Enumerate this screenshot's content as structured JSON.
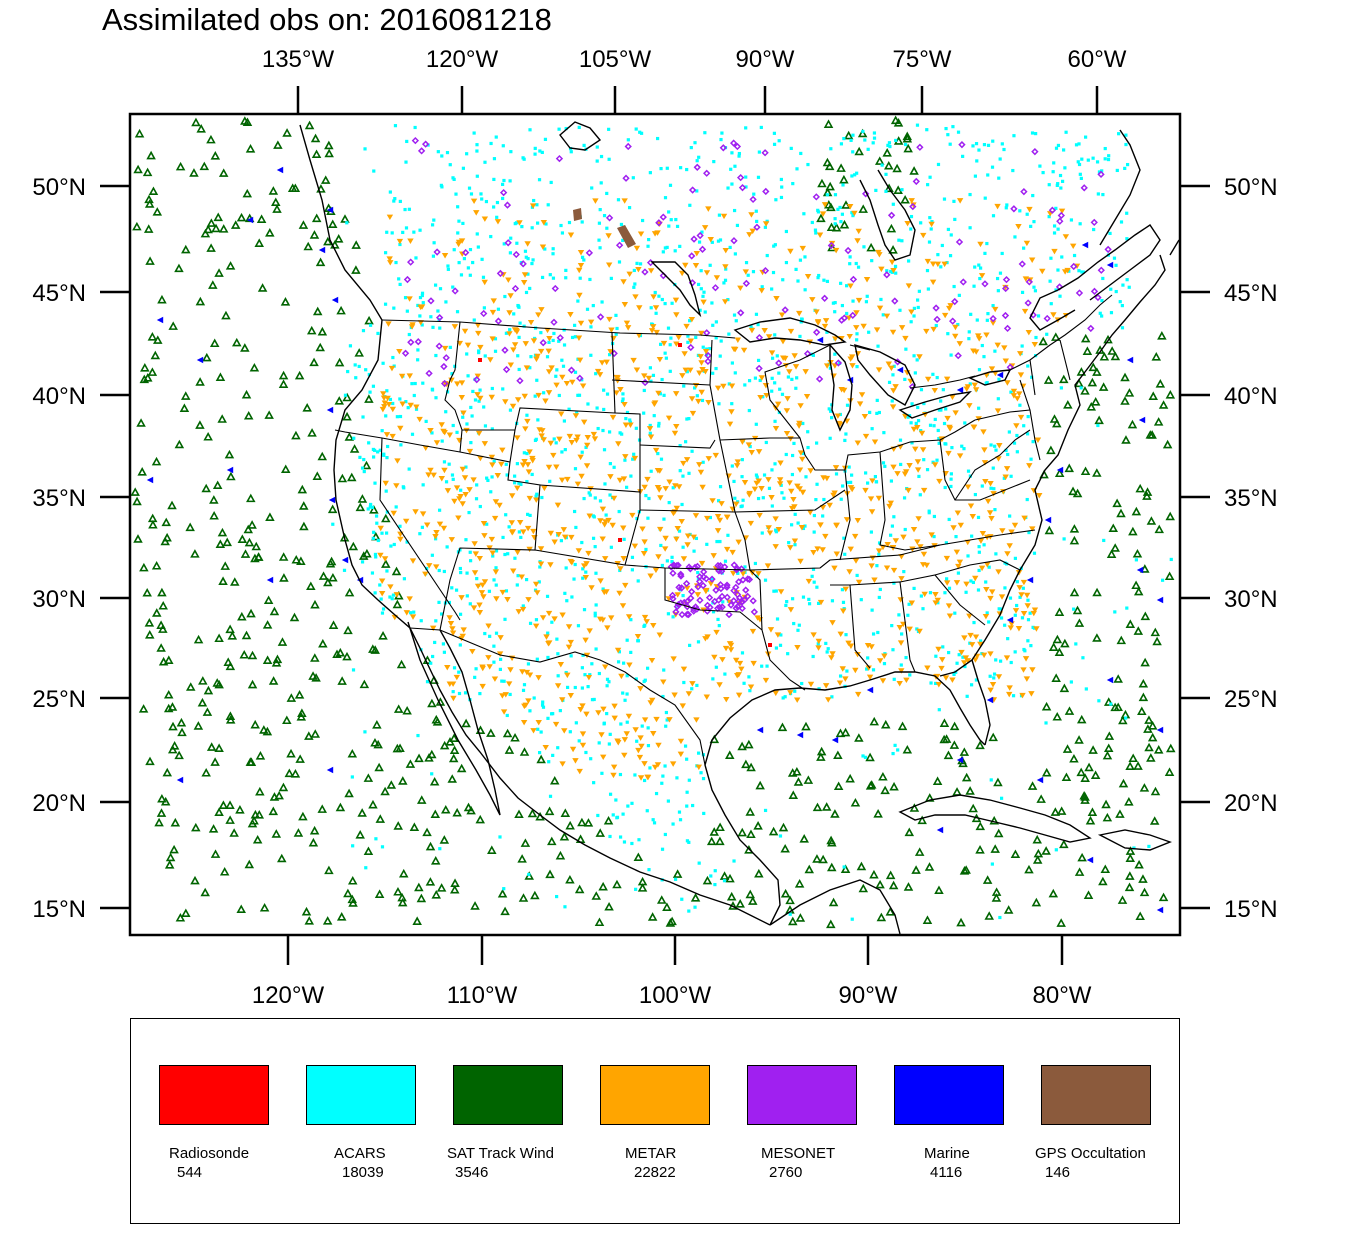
{
  "title": "Assimilated obs on: 2016081218",
  "top_axis": {
    "labels": [
      "135°W",
      "120°W",
      "105°W",
      "90°W",
      "75°W",
      "60°W"
    ]
  },
  "bottom_axis": {
    "labels": [
      "120°W",
      "110°W",
      "100°W",
      "90°W",
      "80°W"
    ]
  },
  "left_axis": {
    "labels": [
      "50°N",
      "45°N",
      "40°N",
      "35°N",
      "30°N",
      "25°N",
      "20°N",
      "15°N"
    ]
  },
  "right_axis": {
    "labels": [
      "50°N",
      "45°N",
      "40°N",
      "35°N",
      "30°N",
      "25°N",
      "20°N",
      "15°N"
    ]
  },
  "legend": [
    {
      "name": "Radiosonde",
      "count": "544",
      "color": "#ff0000"
    },
    {
      "name": "ACARS",
      "count": "18039",
      "color": "#00ffff"
    },
    {
      "name": "SAT Track Wind",
      "count": "3546",
      "color": "#006400"
    },
    {
      "name": "METAR",
      "count": "22822",
      "color": "#ffa500"
    },
    {
      "name": "MESONET",
      "count": "2760",
      "color": "#a020f0"
    },
    {
      "name": "Marine",
      "count": "4116",
      "color": "#0000ff"
    },
    {
      "name": "GPS Occultation",
      "count": "146",
      "color": "#8b5a3c"
    }
  ]
}
